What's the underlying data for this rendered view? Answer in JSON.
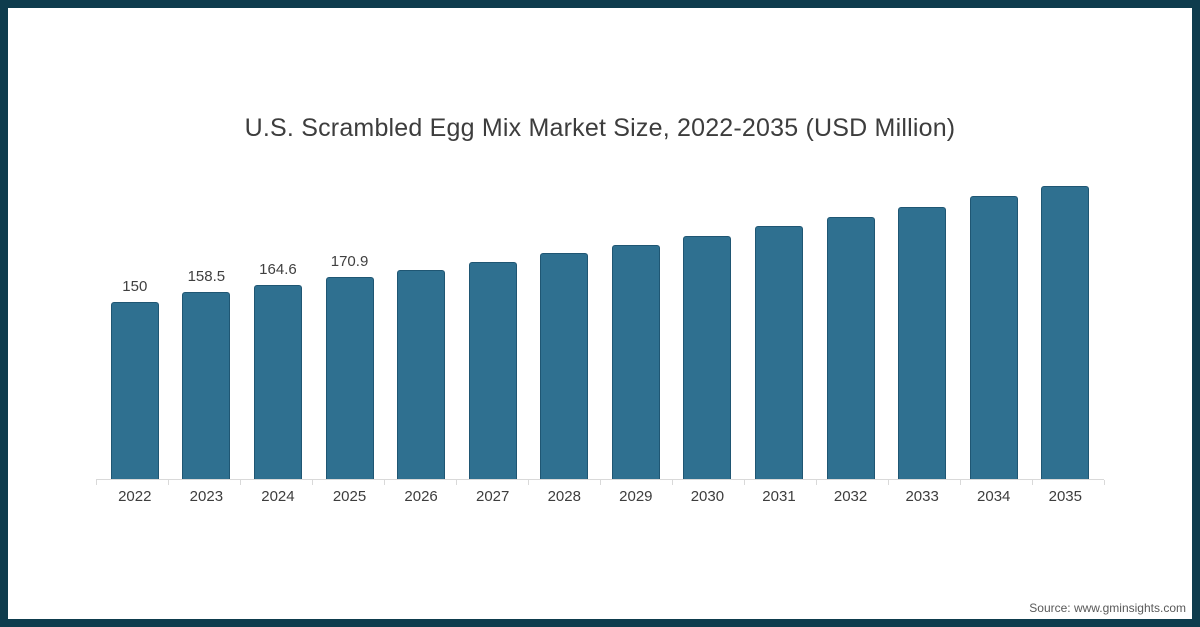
{
  "page": {
    "source": "Source: www.gminsights.com"
  },
  "colors": {
    "bar": "#2f7090",
    "bar_stroke": "#1f5673",
    "frame": "#0e3c4d",
    "axis": "#d9d9d9",
    "title_text": "#3d3d3d",
    "label_text": "#404040",
    "source_text": "#595959"
  },
  "chart_data": {
    "type": "bar",
    "title": "U.S. Scrambled Egg Mix Market Size, 2022-2035 (USD Million)",
    "categories": [
      "2022",
      "2023",
      "2024",
      "2025",
      "2026",
      "2027",
      "2028",
      "2029",
      "2030",
      "2031",
      "2032",
      "2033",
      "2034",
      "2035"
    ],
    "values": [
      150,
      158.5,
      164.6,
      170.9,
      177.4,
      184.2,
      191.2,
      198.5,
      206.1,
      214.0,
      222.2,
      230.7,
      239.5,
      248.6
    ],
    "data_labels": [
      "150",
      "158.5",
      "164.6",
      "170.9",
      "",
      "",
      "",
      "",
      "",
      "",
      "",
      "",
      "",
      ""
    ],
    "xlabel": "",
    "ylabel": "",
    "ylim": [
      0,
      260
    ],
    "grid": false,
    "legend": false
  }
}
